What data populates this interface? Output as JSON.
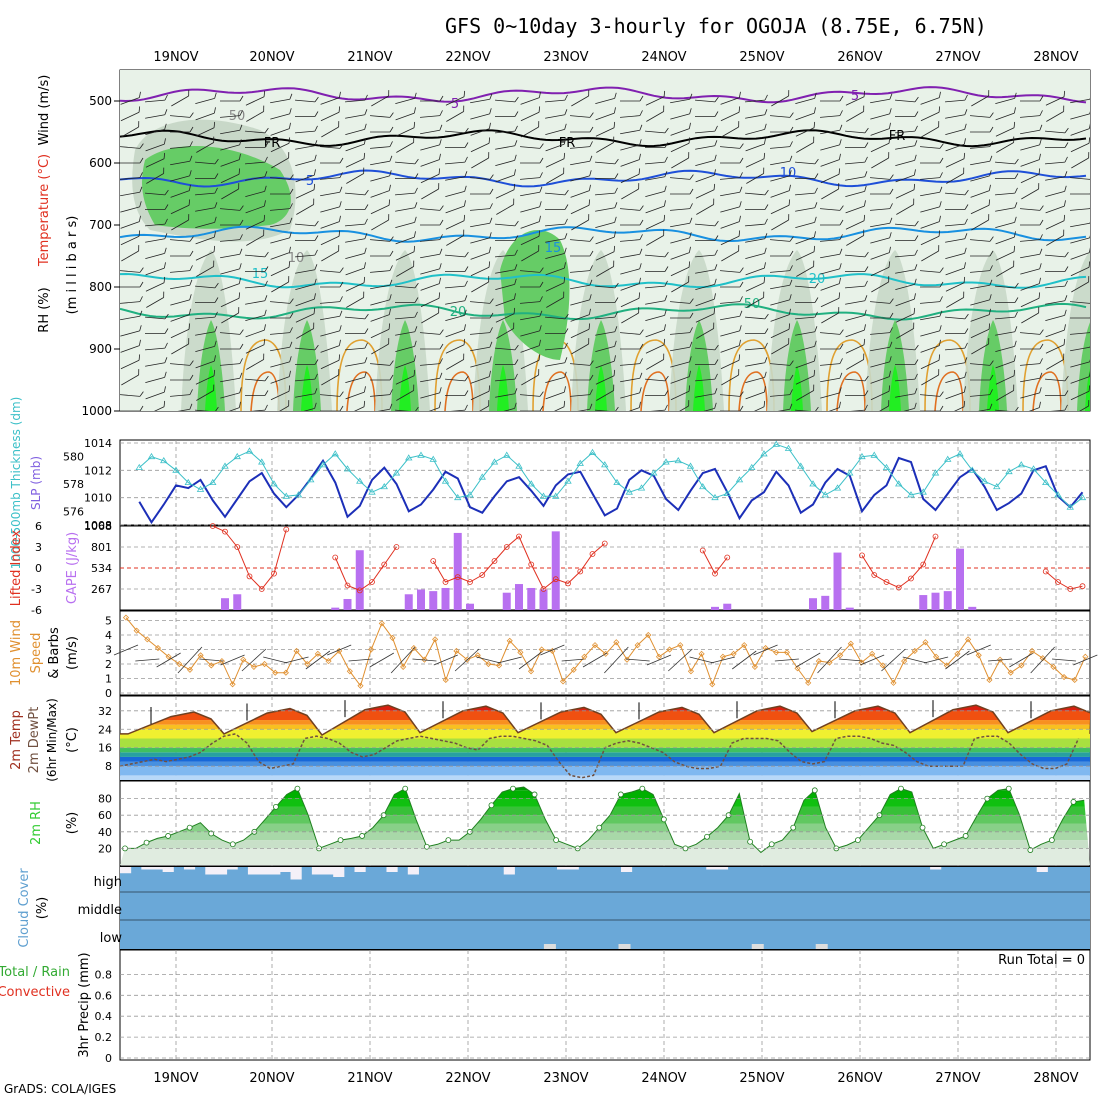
{
  "header": {
    "title": "GFS 0~10day 3-hourly for OGOJA (8.75E, 6.75N)",
    "credit": "GrADS: COLA/IGES"
  },
  "colors": {
    "temp_lines": "#1e4fd8",
    "freezing": "#000000",
    "slp": "#1c2fb8",
    "thickness": "#3cc0c8",
    "lifted": "#e03020",
    "cape": "#b870f0",
    "wind": "#e09030",
    "rh_green": "#33cc33",
    "cloud": "#6aa8d8",
    "precip_green": "#33aa33",
    "precip_red": "#e03020"
  },
  "chart_data": [
    {
      "id": "sounding",
      "type": "heatmap",
      "dates": [
        "19NOV",
        "20NOV",
        "21NOV",
        "22NOV",
        "23NOV",
        "24NOV",
        "25NOV",
        "26NOV",
        "27NOV",
        "28NOV"
      ],
      "ylabel_parts": [
        "RH (%)",
        "Temperature (°C)",
        "Wind (m/s)",
        "(m i l l i b a r s)"
      ],
      "y_ticks": [
        "500",
        "600",
        "700",
        "800",
        "900",
        "1000"
      ],
      "ylim": [
        1000,
        450
      ],
      "contour_labels": [
        "5",
        "FR",
        "FR",
        "FR",
        "5",
        "5",
        "10",
        "15",
        "15",
        "20",
        "20",
        "50",
        "50",
        "10"
      ],
      "isotherms": [
        {
          "name": "5",
          "pressure_upper": 490
        },
        {
          "name": "FR",
          "pressure_upper": 560
        },
        {
          "name": "5",
          "pressure_upper": 625
        },
        {
          "name": "10",
          "pressure_upper": 715
        },
        {
          "name": "15",
          "pressure_upper": 790
        },
        {
          "name": "20",
          "pressure_upper": 840
        }
      ]
    },
    {
      "id": "slp_thickness",
      "type": "line",
      "ylabel_left": "1000-500mb Thickness (dm)",
      "ylabel_right": "SLP (mb)",
      "left_ticks": [
        "580",
        "578",
        "576"
      ],
      "right_ticks": [
        "1014",
        "1012",
        "1010",
        "1008"
      ],
      "slp_ylim": [
        1008,
        1014
      ],
      "slp": [
        1009.7,
        1008.2,
        1009.5,
        1010.9,
        1010.7,
        1011.3,
        1009.8,
        1008.6,
        1009.9,
        1011.2,
        1011.8,
        1010.3,
        1009.3,
        1010.2,
        1011.4,
        1012.7,
        1011.1,
        1008.6,
        1009.4,
        1011.3,
        1012.2,
        1011.0,
        1009.0,
        1009.5,
        1010.6,
        1011.9,
        1011.4,
        1009.3,
        1008.9,
        1010.1,
        1011.2,
        1011.5,
        1010.5,
        1009.4,
        1010.9,
        1011.7,
        1011.9,
        1010.3,
        1008.7,
        1009.2,
        1011.3,
        1012.0,
        1011.6,
        1009.9,
        1009.1,
        1010.5,
        1011.8,
        1012.1,
        1010.4,
        1008.5,
        1009.8,
        1010.4,
        1011.9,
        1010.9,
        1008.9,
        1009.5,
        1011.1,
        1012.1,
        1011.6,
        1009.0,
        1010.2,
        1010.9,
        1012.9,
        1012.6,
        1009.9,
        1009.1,
        1010.3,
        1011.5,
        1012.1,
        1010.8,
        1009.1,
        1009.6,
        1010.3,
        1012.0,
        1012.3,
        1010.1,
        1009.3,
        1010.4,
        1012.4,
        1013.5,
        1011.1,
        1009.2,
        1010.5,
        1012.8
      ],
      "thickness_ylim": [
        575,
        581
      ],
      "thickness": [
        579.2,
        580.0,
        579.7,
        579.0,
        578.1,
        577.6,
        578.1,
        579.3,
        580.0,
        580.4,
        579.6,
        578.0,
        577.1,
        577.2,
        578.3,
        579.4,
        580.2,
        579.1,
        578.2,
        577.4,
        577.8,
        578.8,
        579.9,
        580.1,
        579.8,
        578.2,
        577.0,
        577.2,
        578.5,
        579.6,
        580.1,
        579.3,
        578.0,
        577.1,
        577.1,
        578.2,
        579.5,
        580.3,
        579.4,
        578.1,
        577.4,
        577.7,
        578.8,
        579.6,
        579.7,
        579.3,
        577.8,
        577.0,
        577.3,
        578.3,
        579.2,
        580.2,
        580.9,
        580.6,
        579.3,
        578.0,
        577.2,
        577.7,
        578.8,
        580.0,
        580.1,
        579.2,
        578.0,
        577.2,
        577.4,
        578.8,
        579.8,
        580.2,
        579.0,
        578.2,
        577.8,
        578.9,
        579.4,
        579.1,
        578.1,
        577.2,
        576.3,
        577.0,
        577.8,
        579.0,
        579.4,
        578.2,
        577.4,
        576.8
      ]
    },
    {
      "id": "stability",
      "type": "bar",
      "ylabel_left": "Lifted Index",
      "ylabel_right": "CAPE (J/kg)",
      "li_ticks": [
        "-6",
        "-3",
        "0",
        "3",
        "6"
      ],
      "cape_ticks": [
        "801",
        "534",
        "267"
      ],
      "cape_ylim": [
        0,
        1068
      ],
      "cape": [
        0,
        0,
        0,
        0,
        0,
        0,
        0,
        0,
        0,
        0,
        0,
        0,
        0,
        0,
        0,
        0,
        0,
        0,
        0,
        0,
        0,
        0,
        0,
        0,
        0,
        0,
        0,
        0,
        0,
        0,
        0,
        0,
        0,
        0,
        0,
        0,
        0,
        0,
        0,
        0,
        0,
        0,
        0,
        0,
        0,
        0,
        0,
        0,
        0,
        0,
        0,
        0,
        0,
        0,
        0,
        0,
        0,
        0,
        0,
        0,
        0,
        0,
        0,
        0,
        0,
        0,
        0,
        0,
        0,
        0,
        0,
        0,
        0,
        0,
        0,
        0,
        0,
        0,
        0,
        0,
        0,
        0,
        0,
        0
      ],
      "cape_bars": [
        [
          6,
          150
        ],
        [
          7,
          200
        ],
        [
          15,
          30
        ],
        [
          16,
          140
        ],
        [
          17,
          760
        ],
        [
          21,
          200
        ],
        [
          22,
          260
        ],
        [
          23,
          240
        ],
        [
          24,
          280
        ],
        [
          25,
          980
        ],
        [
          26,
          80
        ],
        [
          29,
          220
        ],
        [
          30,
          330
        ],
        [
          31,
          280
        ],
        [
          32,
          260
        ],
        [
          33,
          1000
        ],
        [
          46,
          40
        ],
        [
          47,
          80
        ],
        [
          54,
          150
        ],
        [
          55,
          180
        ],
        [
          56,
          730
        ],
        [
          57,
          30
        ],
        [
          63,
          190
        ],
        [
          64,
          220
        ],
        [
          65,
          240
        ],
        [
          66,
          780
        ],
        [
          67,
          40
        ]
      ],
      "li_ylim": [
        6,
        -6
      ],
      "li": [
        null,
        null,
        null,
        null,
        null,
        null,
        6.0,
        5.2,
        3.0,
        -1.2,
        -3.0,
        -0.8,
        5.5,
        null,
        null,
        null,
        1.5,
        -2.5,
        -3.2,
        -2.0,
        0.5,
        3.0,
        null,
        null,
        1.0,
        -2.0,
        -1.3,
        -2.0,
        -1.0,
        1.0,
        3.0,
        4.5,
        0.5,
        -3.0,
        -1.6,
        -2.2,
        -0.5,
        2.0,
        3.5,
        null,
        null,
        null,
        null,
        null,
        null,
        null,
        2.5,
        -0.8,
        1.5,
        null,
        null,
        null,
        null,
        null,
        null,
        null,
        null,
        null,
        null,
        1.8,
        -1.0,
        -2.0,
        -2.8,
        -1.5,
        0.5,
        4.5,
        null,
        null,
        null,
        null,
        null,
        null,
        null,
        null,
        -0.5,
        -2.0,
        -3.0,
        -2.6,
        -0.5,
        3.0,
        5.0,
        null,
        null,
        null
      ]
    },
    {
      "id": "wind10m",
      "type": "line",
      "ylabel": "10m Wind Speed & Barbs (m/s)",
      "ylim": [
        0,
        5.5
      ],
      "y_ticks": [
        "0",
        "1",
        "2",
        "3",
        "4",
        "5"
      ],
      "values": [
        5.2,
        4.3,
        3.7,
        3.1,
        2.5,
        2.0,
        1.6,
        2.6,
        1.9,
        2.2,
        0.6,
        2.3,
        1.8,
        2.0,
        1.4,
        1.4,
        2.9,
        2.0,
        2.7,
        2.2,
        2.9,
        1.5,
        0.5,
        3.0,
        4.8,
        3.8,
        1.8,
        3.1,
        2.3,
        3.7,
        0.9,
        2.9,
        2.3,
        2.6,
        2.0,
        1.9,
        3.6,
        2.8,
        1.5,
        3.0,
        2.9,
        0.8,
        1.6,
        2.5,
        3.3,
        2.7,
        3.5,
        2.3,
        3.3,
        4.0,
        2.5,
        3.0,
        3.3,
        1.5,
        2.7,
        0.6,
        2.5,
        2.7,
        3.3,
        1.8,
        3.1,
        2.8,
        2.8,
        1.7,
        0.7,
        2.2,
        2.1,
        2.6,
        3.4,
        2.1,
        2.7,
        1.9,
        0.7,
        2.2,
        2.9,
        3.5,
        2.5,
        1.9,
        2.7,
        3.7,
        2.6,
        0.9,
        2.3,
        1.4,
        1.9,
        2.9,
        2.4,
        1.8,
        1.1,
        0.9,
        2.5
      ]
    },
    {
      "id": "temp2m",
      "type": "area",
      "ylabel": "2m Temp 2m DewPt (6hr Min/Max) (°C)",
      "ylim": [
        0,
        40
      ],
      "y_ticks": [
        "8",
        "16",
        "24",
        "32"
      ],
      "day_max": [
        31.5,
        33,
        34.5,
        34,
        33.5,
        33.5,
        34,
        34,
        34.5,
        34,
        33
      ],
      "day_min": [
        22,
        22,
        21.5,
        22.5,
        22.5,
        22.5,
        22.5,
        23,
        22.5,
        22.5,
        22
      ],
      "dewpoint": [
        8,
        9,
        10,
        11,
        10,
        11,
        12,
        14,
        18,
        21,
        22,
        18,
        10,
        7,
        8,
        9,
        20,
        21,
        20,
        18,
        14,
        12,
        13,
        16,
        19,
        20,
        21,
        20,
        19,
        18,
        16,
        15,
        20,
        21,
        21,
        20,
        19,
        17,
        10,
        4,
        3,
        4,
        16,
        18,
        19,
        18,
        16,
        14,
        10,
        8,
        7,
        7,
        8,
        18,
        20,
        20,
        20,
        19,
        14,
        10,
        9,
        10,
        20,
        21,
        21,
        20,
        18,
        17,
        14,
        10,
        8,
        8,
        8,
        8,
        20,
        21,
        21,
        18,
        13,
        9,
        7,
        7,
        9,
        20
      ]
    },
    {
      "id": "rh2m",
      "type": "area",
      "ylabel": "2m RH (%)",
      "ylim": [
        0,
        100
      ],
      "y_ticks": [
        "20",
        "40",
        "60",
        "80"
      ],
      "values": [
        20,
        20,
        27,
        32,
        35,
        40,
        45,
        51,
        38,
        30,
        25,
        30,
        40,
        55,
        70,
        85,
        92,
        60,
        20,
        25,
        30,
        32,
        35,
        45,
        60,
        85,
        92,
        55,
        22,
        25,
        30,
        30,
        40,
        55,
        72,
        88,
        92,
        94,
        85,
        55,
        30,
        25,
        20,
        30,
        45,
        60,
        85,
        88,
        92,
        85,
        55,
        25,
        20,
        25,
        34,
        45,
        60,
        86,
        28,
        15,
        25,
        30,
        45,
        78,
        90,
        45,
        20,
        24,
        30,
        45,
        60,
        85,
        92,
        88,
        45,
        20,
        25,
        30,
        35,
        58,
        80,
        90,
        92,
        60,
        18,
        25,
        30,
        55,
        76,
        78
      ]
    },
    {
      "id": "cloud",
      "type": "bar",
      "ylabel": "Cloud Cover (%)",
      "categories": [
        "high",
        "middle",
        "low"
      ],
      "high": [
        75,
        100,
        90,
        90,
        80,
        100,
        90,
        100,
        70,
        70,
        90,
        100,
        70,
        70,
        70,
        80,
        50,
        100,
        70,
        70,
        60,
        100,
        80,
        100,
        100,
        80,
        100,
        70,
        100,
        100,
        100,
        100,
        100,
        100,
        100,
        100,
        70,
        100,
        100,
        100,
        100,
        90,
        90,
        100,
        100,
        100,
        100,
        80,
        100,
        100,
        100,
        100,
        100,
        100,
        100,
        90,
        90,
        100,
        100,
        100,
        100,
        100,
        100,
        100,
        100,
        100,
        100,
        100,
        100,
        100,
        100,
        100,
        100,
        100,
        100,
        100,
        90,
        100,
        100,
        100,
        100,
        100,
        100,
        100,
        100,
        100,
        80,
        100,
        100,
        100,
        100
      ],
      "low_marks": [
        27,
        41,
        66,
        78
      ]
    },
    {
      "id": "precip",
      "type": "bar",
      "ylabel_lines": [
        "Total / Rain",
        "Convective"
      ],
      "ylabel_right": "3hr Precip (mm)",
      "run_total": "Run Total = 0",
      "ylim": [
        0,
        1
      ],
      "y_ticks": [
        "0",
        "0.2",
        "0.4",
        "0.6",
        "0.8"
      ],
      "values": []
    }
  ]
}
